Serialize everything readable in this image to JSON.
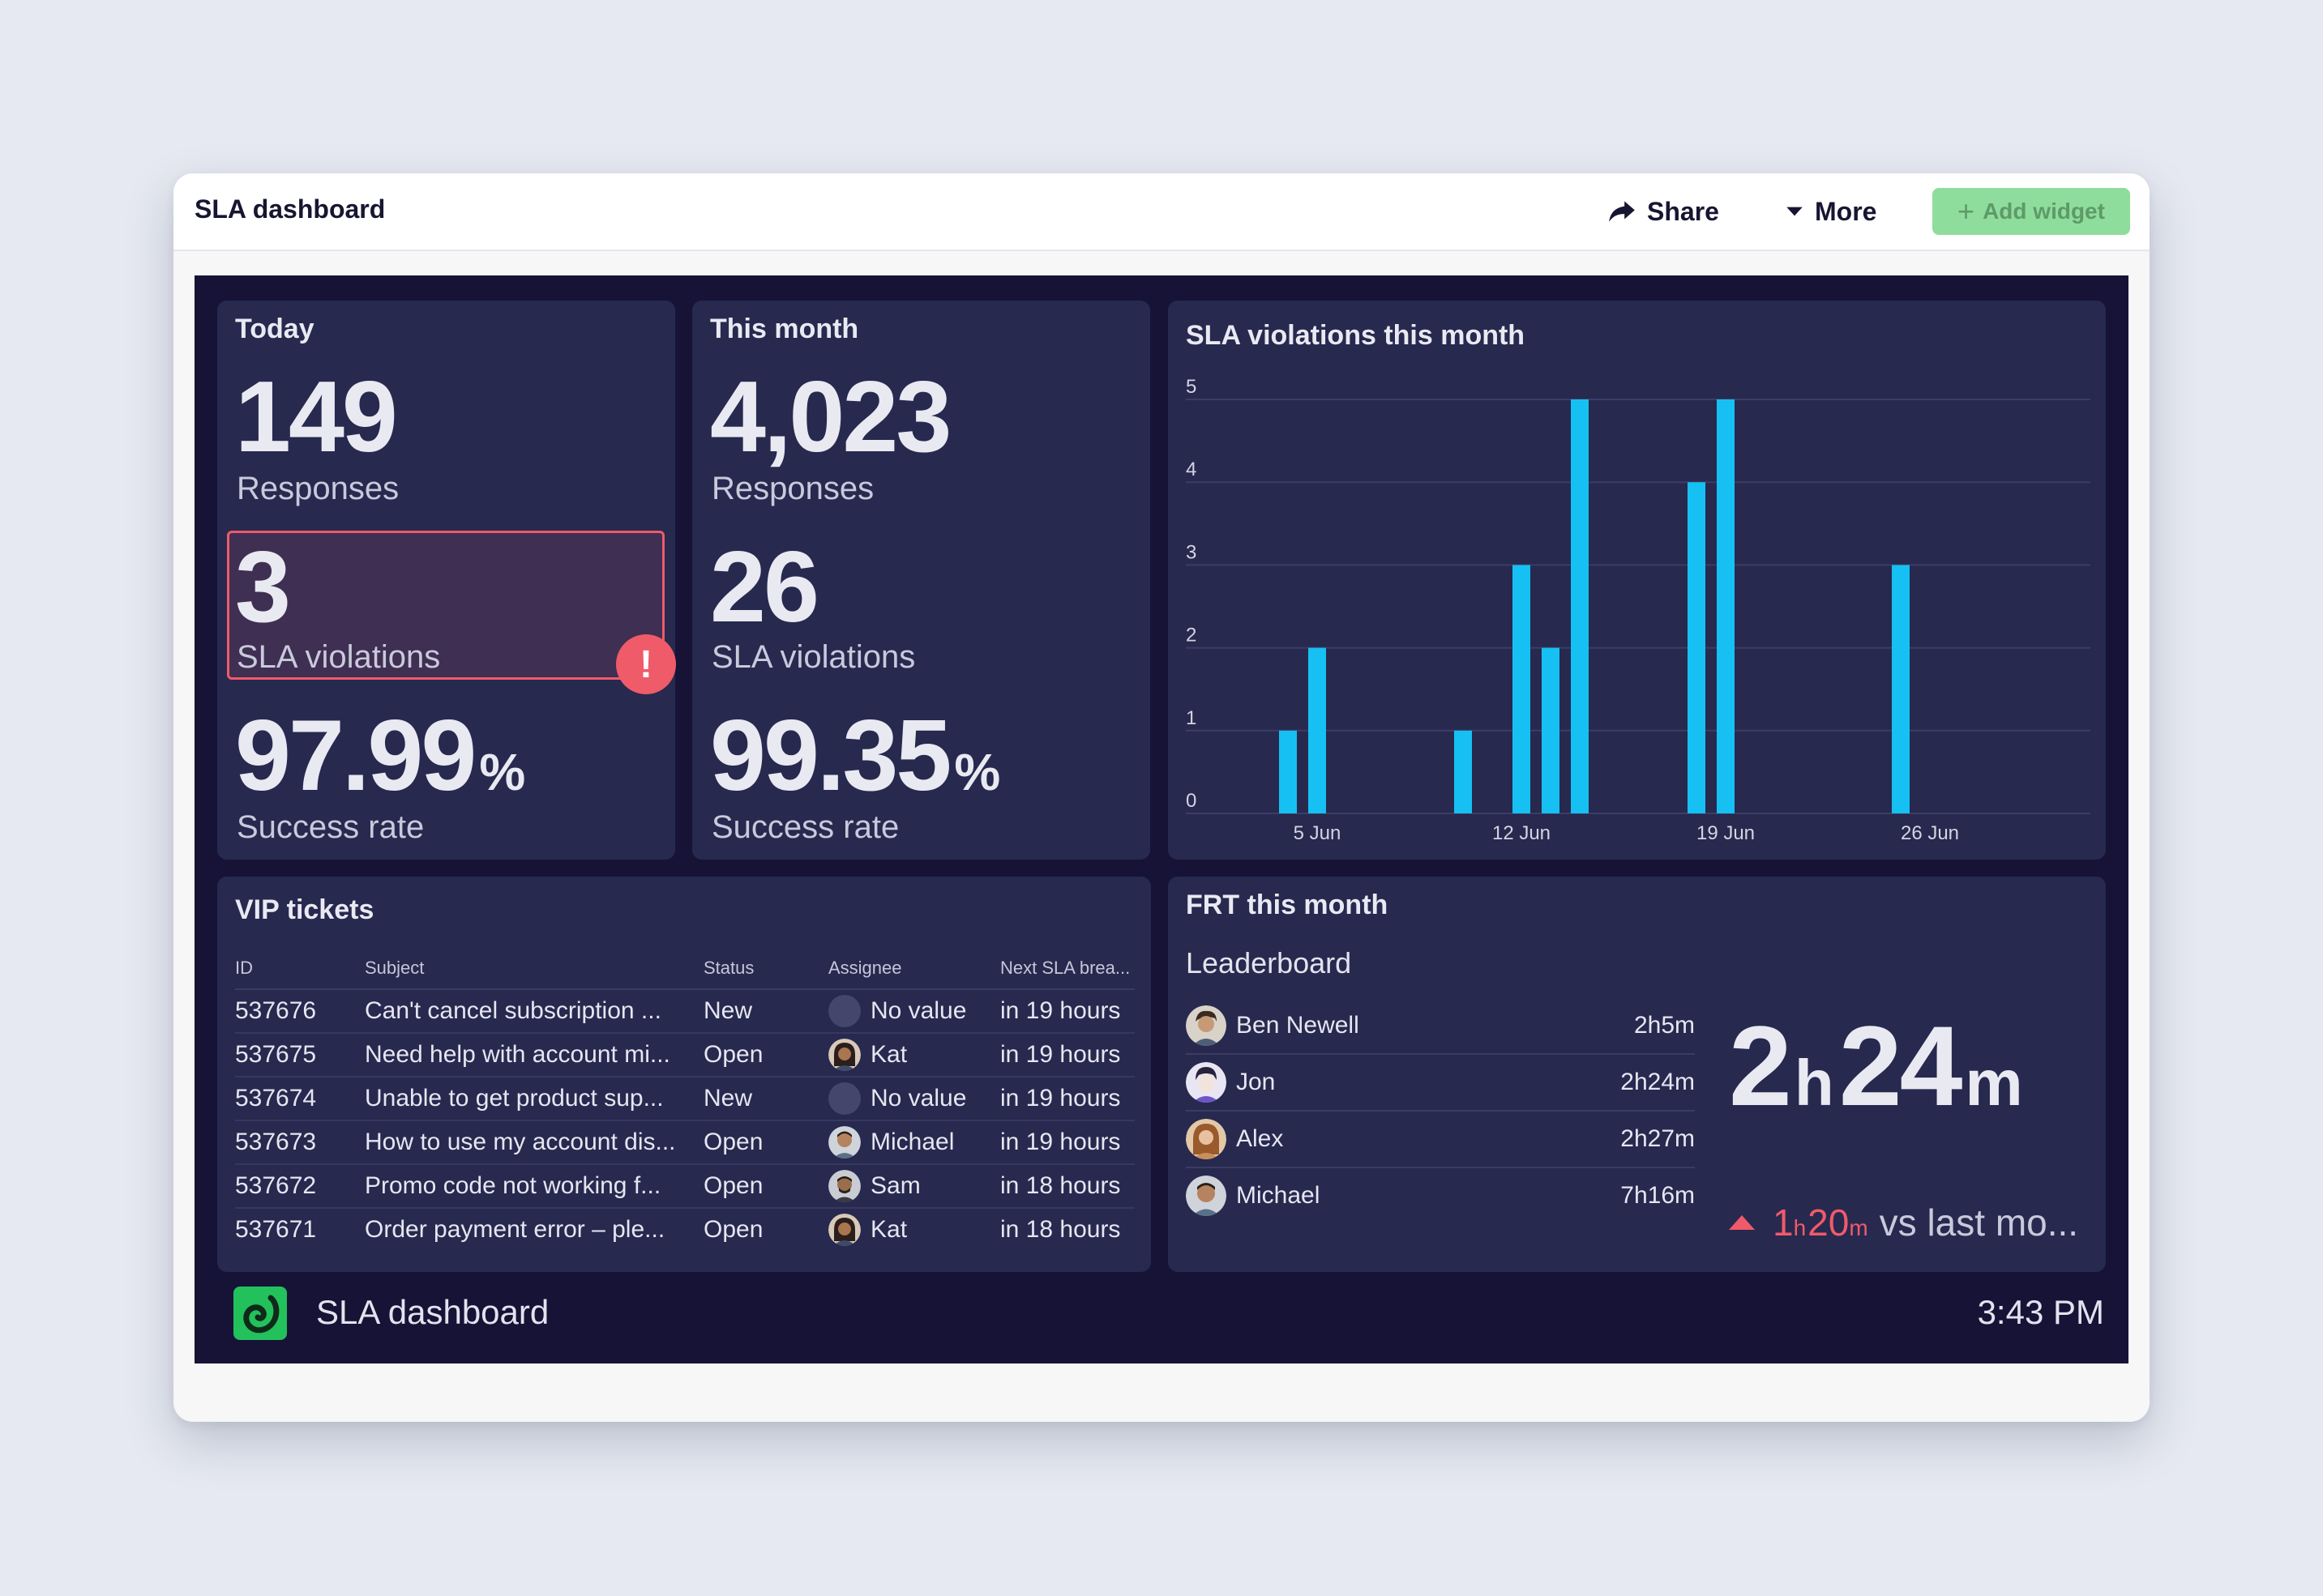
{
  "window": {
    "title": "SLA dashboard"
  },
  "toolbar": {
    "share_label": "Share",
    "more_label": "More",
    "add_widget_label": "Add widget"
  },
  "today": {
    "title": "Today",
    "responses": "149",
    "responses_label": "Responses",
    "violations": "3",
    "violations_label": "SLA violations",
    "success_rate": "97.99",
    "success_unit": "%",
    "success_label": "Success rate"
  },
  "month": {
    "title": "This month",
    "responses": "4,023",
    "responses_label": "Responses",
    "violations": "26",
    "violations_label": "SLA violations",
    "success_rate": "99.35",
    "success_unit": "%",
    "success_label": "Success rate"
  },
  "chart_data": {
    "type": "bar",
    "title": "SLA violations this month",
    "x": [
      1,
      2,
      3,
      4,
      5,
      6,
      7,
      8,
      9,
      10,
      11,
      12,
      13,
      14,
      15,
      16,
      17,
      18,
      19,
      20,
      21,
      22,
      23,
      24,
      25,
      26,
      27,
      28,
      29,
      30
    ],
    "values": [
      0,
      0,
      0,
      1,
      2,
      0,
      0,
      0,
      0,
      1,
      0,
      3,
      2,
      5,
      0,
      0,
      0,
      4,
      5,
      0,
      0,
      0,
      0,
      0,
      3,
      0,
      0,
      0,
      0,
      0
    ],
    "xticks": [
      5,
      12,
      19,
      26
    ],
    "xtick_labels": [
      "5 Jun",
      "12 Jun",
      "19 Jun",
      "26 Jun"
    ],
    "yticks": [
      "0",
      "1",
      "2",
      "3",
      "4",
      "5"
    ],
    "ylim": [
      0,
      5
    ],
    "xlim": [
      0.5,
      31.5
    ],
    "xlabel": "",
    "ylabel": "",
    "color": "#17c0f2",
    "grid": true
  },
  "vip": {
    "title": "VIP tickets",
    "columns": [
      "ID",
      "Subject",
      "Status",
      "Assignee",
      "Next SLA brea..."
    ],
    "rows": [
      {
        "id": "537676",
        "subject": "Can't cancel subscription ...",
        "status": "New",
        "assignee": "No value",
        "next": "in 19 hours"
      },
      {
        "id": "537675",
        "subject": "Need help with account mi...",
        "status": "Open",
        "assignee": "Kat",
        "next": "in 19 hours"
      },
      {
        "id": "537674",
        "subject": "Unable to get product sup...",
        "status": "New",
        "assignee": "No value",
        "next": "in 19 hours"
      },
      {
        "id": "537673",
        "subject": "How to use my account dis...",
        "status": "Open",
        "assignee": "Michael",
        "next": "in 19 hours"
      },
      {
        "id": "537672",
        "subject": "Promo code not working f...",
        "status": "Open",
        "assignee": "Sam",
        "next": "in 18 hours"
      },
      {
        "id": "537671",
        "subject": "Order payment error – ple...",
        "status": "Open",
        "assignee": "Kat",
        "next": "in 18 hours"
      }
    ]
  },
  "frt": {
    "title": "FRT this month",
    "leaderboard_title": "Leaderboard",
    "leaders": [
      {
        "name": "Ben Newell",
        "time": "2h5m"
      },
      {
        "name": "Jon",
        "time": "2h24m"
      },
      {
        "name": "Alex",
        "time": "2h27m"
      },
      {
        "name": "Michael",
        "time": "7h16m"
      }
    ],
    "big_hours": "2",
    "big_hours_unit": "h",
    "big_minutes": "24",
    "big_minutes_unit": "m",
    "delta_hours": "1",
    "delta_hours_unit": "h",
    "delta_minutes": "20",
    "delta_minutes_unit": "m",
    "delta_suffix": "vs last mo..."
  },
  "footer": {
    "title": "SLA dashboard",
    "clock": "3:43 PM"
  },
  "colors": {
    "accent_bar": "#17c0f2",
    "alert": "#ef5b69",
    "brand": "#23c15c",
    "add_button": "#8fdd9c"
  }
}
